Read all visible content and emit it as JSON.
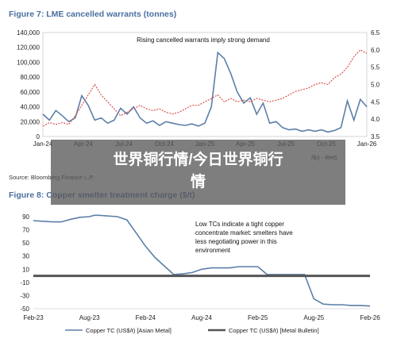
{
  "figure7": {
    "title": "Figure 7: LME cancelled warrants (tonnes)",
    "source": "Source: Bloomberg Finance L.P.",
    "annotation": "Rising cancelled warrants imply strong demand",
    "legend_partial": "/lb) - RHS"
  },
  "figure8": {
    "title": "Figure 8: Copper smelter treatment charge ($/t)",
    "annotation_lines": [
      "Low TCs indicate a tight copper",
      "concentrate market: smelters have",
      "less negotiating power in this",
      "environment"
    ],
    "legend": [
      "Copper TC (US$/t)  [Asian Metal]",
      "Copper TC (US$/t)  [Metal Bulletin]"
    ]
  },
  "overlay": {
    "line1": "世界铜行情/今日世界铜行",
    "line2": "情"
  },
  "chart_data": [
    {
      "type": "line",
      "title": "Figure 7: LME cancelled warrants (tonnes)",
      "x_ticks": [
        "Jan-24",
        "Apr-24",
        "Jul-24",
        "Oct-24",
        "Jan-25",
        "Apr-25",
        "Jul-25",
        "Oct-25",
        "Jan-26"
      ],
      "ylim": [
        0,
        140000
      ],
      "y_ticks": [
        "0",
        "20,000",
        "40,000",
        "60,000",
        "80,000",
        "100,000",
        "120,000",
        "140,000"
      ],
      "y2lim": [
        3.5,
        6.5
      ],
      "y2_ticks": [
        "3.5",
        "4.0",
        "4.5",
        "5.0",
        "5.5",
        "6.0",
        "6.5"
      ],
      "series": [
        {
          "axis": "left",
          "color": "#5b7fa8",
          "style": "solid",
          "x": [
            0,
            0.5,
            1,
            1.5,
            2,
            2.5,
            3,
            3.5,
            4,
            4.5,
            5,
            5.5,
            6,
            6.5,
            7,
            7.5,
            8,
            8.5,
            9,
            9.5,
            10,
            10.5,
            11,
            11.5,
            12,
            12.5,
            13,
            13.5,
            14,
            14.5,
            15,
            15.5,
            16,
            16.5,
            17,
            17.5,
            18,
            18.5,
            19,
            19.5,
            20,
            20.5,
            21,
            21.5,
            22,
            22.5,
            23,
            23.5,
            24,
            24.5,
            25
          ],
          "values": [
            30000,
            22000,
            35000,
            28000,
            20000,
            25000,
            55000,
            42000,
            22000,
            25000,
            18000,
            22000,
            38000,
            30000,
            40000,
            25000,
            18000,
            21000,
            15000,
            20000,
            18000,
            16000,
            15000,
            17000,
            14000,
            18000,
            40000,
            113000,
            105000,
            85000,
            60000,
            45000,
            52000,
            30000,
            45000,
            18000,
            20000,
            12000,
            9000,
            10000,
            7000,
            9000,
            7000,
            9000,
            6000,
            8000,
            12000,
            48000,
            22000,
            50000,
            40000
          ]
        },
        {
          "axis": "right",
          "color": "#d9534f",
          "style": "dashed",
          "x": [
            0,
            0.5,
            1,
            1.5,
            2,
            2.5,
            3,
            3.5,
            4,
            4.5,
            5,
            5.5,
            6,
            6.5,
            7,
            7.5,
            8,
            8.5,
            9,
            9.5,
            10,
            10.5,
            11,
            11.5,
            12,
            12.5,
            13,
            13.5,
            14,
            14.5,
            15,
            15.5,
            16,
            16.5,
            17,
            17.5,
            18,
            18.5,
            19,
            19.5,
            20,
            20.5,
            21,
            21.5,
            22,
            22.5,
            23,
            23.5,
            24,
            24.5,
            25
          ],
          "values": [
            3.8,
            3.9,
            3.85,
            3.9,
            3.85,
            4.1,
            4.4,
            4.7,
            5.0,
            4.7,
            4.5,
            4.3,
            4.1,
            4.2,
            4.3,
            4.4,
            4.3,
            4.25,
            4.3,
            4.2,
            4.15,
            4.2,
            4.3,
            4.4,
            4.4,
            4.5,
            4.6,
            4.7,
            4.5,
            4.6,
            4.5,
            4.55,
            4.5,
            4.6,
            4.55,
            4.5,
            4.55,
            4.6,
            4.7,
            4.8,
            4.85,
            4.9,
            5.0,
            5.05,
            5.0,
            5.2,
            5.3,
            5.5,
            5.8,
            6.0,
            5.9
          ]
        }
      ]
    },
    {
      "type": "line",
      "title": "Figure 8: Copper smelter treatment charge ($/t)",
      "x_ticks": [
        "Feb-23",
        "Aug-23",
        "Feb-24",
        "Aug-24",
        "Feb-25",
        "Aug-25",
        "Feb-26"
      ],
      "ylim": [
        -50,
        90
      ],
      "y_ticks": [
        "-50",
        "-30",
        "-10",
        "10",
        "30",
        "50",
        "70",
        "90"
      ],
      "series": [
        {
          "name": "Copper TC (US$/t)  [Asian Metal]",
          "color": "#5b7fa8",
          "x": [
            0,
            1,
            2,
            3,
            4,
            5,
            6,
            6.5,
            7,
            8,
            9,
            10,
            11,
            12,
            13,
            14,
            15,
            16,
            17,
            18,
            19,
            20,
            21,
            22,
            23,
            24,
            25,
            26,
            27,
            28,
            29,
            30,
            31,
            32,
            33,
            34,
            35,
            36
          ],
          "values": [
            84,
            83,
            82,
            82,
            86,
            89,
            90,
            92,
            92,
            91,
            90,
            85,
            65,
            45,
            28,
            15,
            2,
            3,
            5,
            10,
            12,
            12,
            12,
            14,
            14,
            14,
            2,
            2,
            2,
            2,
            2,
            -35,
            -43,
            -44,
            -44,
            -45,
            -45,
            -46
          ]
        },
        {
          "name": "Copper TC (US$/t)  [Metal Bulletin]",
          "color": "#555555",
          "x": [
            0,
            36
          ],
          "values": [
            0,
            0
          ]
        }
      ]
    }
  ]
}
